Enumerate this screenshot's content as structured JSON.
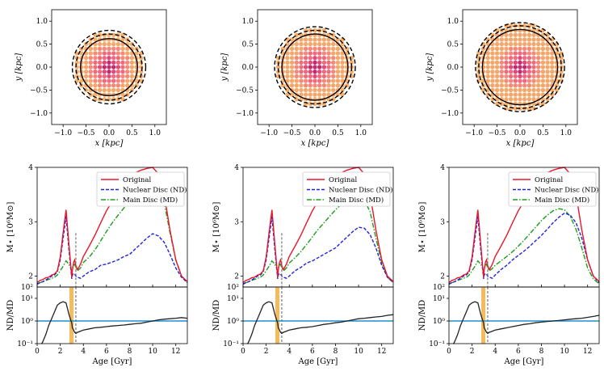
{
  "figure": {
    "panel_count": 3,
    "spatial": {
      "xlabel": "x [kpc]",
      "ylabel": "y [kpc]",
      "xlim": [
        -1.25,
        1.25
      ],
      "ylim": [
        -1.25,
        1.25
      ],
      "ticks": [
        -1.0,
        -0.5,
        0.0,
        0.5,
        1.0
      ],
      "tick_labels": [
        "−1.0",
        "−0.5",
        "0.0",
        "0.5",
        "1.0"
      ]
    },
    "sfh": {
      "ylabel": "M⋆ [10⁶M⊙]",
      "ylim": [
        1.8,
        4.0
      ],
      "yticks": [
        2,
        3,
        4
      ],
      "ytick_labels": [
        "10²",
        "2",
        "3",
        "4"
      ],
      "legend": [
        "Original",
        "Nuclear Disc (ND)",
        "Main Disc (MD)"
      ]
    },
    "ratio": {
      "ylabel": "ND/MD",
      "xlabel": "Age [Gyr]",
      "xlim": [
        0,
        13
      ],
      "xticks": [
        0,
        2,
        4,
        6,
        8,
        10,
        12
      ],
      "xtick_labels": [
        "0",
        "2",
        "4",
        "6",
        "8",
        "10",
        "12"
      ],
      "ytick_labels": [
        "10¹",
        "10⁰",
        "10⁻¹"
      ],
      "ylog_range": [
        -1,
        1.5
      ]
    }
  },
  "colors": {
    "original": "#e8172a",
    "nuclear": "#2222dd",
    "main": "#1b9e1b",
    "ratio_line": "#222222",
    "unity_line": "#1f8fcf",
    "age_band": "#f3b24a",
    "age_marker": "#777777"
  },
  "chart_data": [
    {
      "type": "scatter",
      "panel": "left",
      "title": "",
      "xlabel": "x [kpc]",
      "ylabel": "y [kpc]",
      "description_values": {
        "solid_circle_radius": 0.62,
        "dashed_inner_radius": 0.72,
        "dashed_outer_radius": 0.8,
        "particle_extent": 0.78
      },
      "ages_gyr": [
        0.0,
        0.25,
        0.5,
        0.75,
        1.0,
        1.25,
        1.5,
        1.75,
        2.0,
        2.25,
        2.5,
        2.75,
        3.0,
        3.05,
        3.15,
        3.25,
        3.35,
        3.5,
        3.75,
        4.0,
        4.5,
        5.0,
        5.5,
        6.0,
        6.5,
        7.0,
        7.5,
        8.0,
        8.5,
        9.0,
        9.5,
        10.0,
        10.5,
        11.0,
        11.5,
        12.0,
        12.5,
        13.0
      ],
      "original": [
        1.88,
        1.92,
        1.94,
        1.97,
        1.98,
        2.02,
        2.04,
        2.1,
        2.35,
        2.8,
        3.22,
        2.6,
        1.98,
        2.1,
        2.25,
        2.3,
        2.2,
        2.12,
        2.22,
        2.36,
        2.55,
        2.75,
        2.98,
        3.2,
        3.38,
        3.55,
        3.7,
        3.8,
        3.9,
        3.95,
        3.98,
        4.0,
        3.88,
        3.5,
        2.85,
        2.3,
        2.0,
        1.9
      ],
      "nuclear": [
        1.85,
        1.88,
        1.9,
        1.93,
        1.96,
        2.0,
        2.02,
        2.08,
        2.3,
        2.7,
        3.1,
        2.5,
        1.95,
        2.02,
        2.05,
        2.04,
        2.0,
        1.98,
        1.96,
        2.0,
        2.08,
        2.12,
        2.2,
        2.22,
        2.26,
        2.3,
        2.36,
        2.4,
        2.5,
        2.6,
        2.7,
        2.78,
        2.74,
        2.62,
        2.4,
        2.15,
        1.98,
        1.88
      ],
      "main": [
        1.86,
        1.88,
        1.9,
        1.92,
        1.94,
        1.96,
        1.98,
        2.02,
        2.1,
        2.18,
        2.28,
        2.22,
        2.1,
        2.15,
        2.2,
        2.22,
        2.15,
        2.1,
        2.15,
        2.25,
        2.35,
        2.48,
        2.65,
        2.82,
        2.98,
        3.12,
        3.25,
        3.38,
        3.5,
        3.6,
        3.68,
        3.7,
        3.62,
        3.35,
        2.8,
        2.3,
        2.0,
        1.88
      ],
      "ratio_log": [
        -1.2,
        -1.2,
        -0.9,
        -0.6,
        -0.2,
        0.1,
        0.4,
        0.7,
        0.8,
        0.85,
        0.8,
        0.3,
        -0.1,
        -0.3,
        -0.4,
        -0.5,
        -0.55,
        -0.5,
        -0.45,
        -0.4,
        -0.35,
        -0.3,
        -0.28,
        -0.25,
        -0.22,
        -0.2,
        -0.18,
        -0.15,
        -0.12,
        -0.1,
        -0.05,
        0.0,
        0.05,
        0.08,
        0.1,
        0.12,
        0.15,
        0.12
      ],
      "age_band": [
        2.8,
        3.15
      ],
      "age_marker": 3.35
    },
    {
      "type": "scatter",
      "panel": "middle",
      "title": "",
      "xlabel": "x [kpc]",
      "ylabel": "y [kpc]",
      "description_values": {
        "solid_circle_radius": 0.72,
        "dashed_inner_radius": 0.8,
        "dashed_outer_radius": 0.88,
        "particle_extent": 0.85
      },
      "ages_gyr": [
        0.0,
        0.25,
        0.5,
        0.75,
        1.0,
        1.25,
        1.5,
        1.75,
        2.0,
        2.25,
        2.5,
        2.75,
        3.0,
        3.05,
        3.15,
        3.25,
        3.35,
        3.5,
        3.75,
        4.0,
        4.5,
        5.0,
        5.5,
        6.0,
        6.5,
        7.0,
        7.5,
        8.0,
        8.5,
        9.0,
        9.5,
        10.0,
        10.5,
        11.0,
        11.5,
        12.0,
        12.5,
        13.0
      ],
      "original": [
        1.88,
        1.92,
        1.94,
        1.97,
        1.98,
        2.02,
        2.04,
        2.1,
        2.35,
        2.8,
        3.22,
        2.6,
        1.98,
        2.1,
        2.25,
        2.3,
        2.2,
        2.12,
        2.22,
        2.36,
        2.55,
        2.75,
        2.98,
        3.2,
        3.38,
        3.55,
        3.7,
        3.8,
        3.9,
        3.95,
        3.98,
        4.0,
        3.88,
        3.5,
        2.85,
        2.3,
        2.0,
        1.9
      ],
      "nuclear": [
        1.85,
        1.88,
        1.9,
        1.93,
        1.96,
        2.0,
        2.02,
        2.08,
        2.3,
        2.7,
        3.1,
        2.5,
        1.95,
        2.02,
        2.05,
        2.04,
        2.0,
        1.98,
        1.96,
        2.0,
        2.1,
        2.16,
        2.24,
        2.28,
        2.34,
        2.4,
        2.46,
        2.52,
        2.62,
        2.72,
        2.82,
        2.9,
        2.88,
        2.76,
        2.52,
        2.2,
        1.98,
        1.88
      ],
      "main": [
        1.86,
        1.88,
        1.9,
        1.92,
        1.94,
        1.96,
        1.98,
        2.02,
        2.1,
        2.18,
        2.28,
        2.22,
        2.1,
        2.15,
        2.2,
        2.22,
        2.15,
        2.1,
        2.15,
        2.24,
        2.34,
        2.45,
        2.58,
        2.72,
        2.86,
        2.98,
        3.1,
        3.22,
        3.32,
        3.4,
        3.46,
        3.48,
        3.4,
        3.18,
        2.7,
        2.25,
        1.98,
        1.88
      ],
      "ratio_log": [
        -1.2,
        -1.2,
        -0.9,
        -0.6,
        -0.2,
        0.1,
        0.4,
        0.7,
        0.8,
        0.85,
        0.8,
        0.3,
        -0.1,
        -0.3,
        -0.4,
        -0.5,
        -0.55,
        -0.5,
        -0.45,
        -0.4,
        -0.35,
        -0.3,
        -0.28,
        -0.25,
        -0.2,
        -0.15,
        -0.12,
        -0.08,
        -0.05,
        0.0,
        0.05,
        0.1,
        0.12,
        0.15,
        0.18,
        0.2,
        0.25,
        0.28
      ],
      "age_band": [
        2.8,
        3.15
      ],
      "age_marker": 3.35
    },
    {
      "type": "scatter",
      "panel": "right",
      "title": "",
      "xlabel": "x [kpc]",
      "ylabel": "y [kpc]",
      "description_values": {
        "solid_circle_radius": 0.82,
        "dashed_inner_radius": 0.9,
        "dashed_outer_radius": 0.97,
        "particle_extent": 0.95
      },
      "ages_gyr": [
        0.0,
        0.25,
        0.5,
        0.75,
        1.0,
        1.25,
        1.5,
        1.75,
        2.0,
        2.25,
        2.5,
        2.75,
        3.0,
        3.05,
        3.15,
        3.25,
        3.35,
        3.5,
        3.75,
        4.0,
        4.5,
        5.0,
        5.5,
        6.0,
        6.5,
        7.0,
        7.5,
        8.0,
        8.5,
        9.0,
        9.5,
        10.0,
        10.5,
        11.0,
        11.5,
        12.0,
        12.5,
        13.0
      ],
      "original": [
        1.88,
        1.92,
        1.94,
        1.97,
        1.98,
        2.02,
        2.04,
        2.1,
        2.35,
        2.8,
        3.22,
        2.6,
        1.98,
        2.1,
        2.25,
        2.3,
        2.2,
        2.12,
        2.22,
        2.36,
        2.55,
        2.75,
        2.98,
        3.2,
        3.38,
        3.55,
        3.7,
        3.8,
        3.9,
        3.95,
        3.98,
        4.0,
        3.88,
        3.5,
        2.85,
        2.3,
        2.0,
        1.9
      ],
      "nuclear": [
        1.85,
        1.88,
        1.9,
        1.93,
        1.96,
        2.0,
        2.02,
        2.08,
        2.3,
        2.7,
        3.1,
        2.5,
        1.95,
        2.02,
        2.05,
        2.04,
        2.0,
        1.98,
        1.96,
        2.02,
        2.12,
        2.2,
        2.3,
        2.38,
        2.46,
        2.55,
        2.65,
        2.75,
        2.86,
        2.98,
        3.08,
        3.16,
        3.12,
        2.98,
        2.7,
        2.3,
        2.0,
        1.88
      ],
      "main": [
        1.86,
        1.88,
        1.9,
        1.92,
        1.94,
        1.96,
        1.98,
        2.02,
        2.1,
        2.18,
        2.28,
        2.22,
        2.1,
        2.15,
        2.2,
        2.22,
        2.15,
        2.1,
        2.14,
        2.2,
        2.28,
        2.36,
        2.45,
        2.55,
        2.66,
        2.78,
        2.9,
        3.02,
        3.12,
        3.2,
        3.24,
        3.22,
        3.1,
        2.86,
        2.52,
        2.15,
        1.95,
        1.86
      ],
      "ratio_log": [
        -1.2,
        -1.2,
        -0.9,
        -0.6,
        -0.2,
        0.1,
        0.4,
        0.7,
        0.8,
        0.85,
        0.8,
        0.3,
        -0.1,
        -0.3,
        -0.4,
        -0.5,
        -0.55,
        -0.5,
        -0.45,
        -0.4,
        -0.35,
        -0.3,
        -0.25,
        -0.2,
        -0.15,
        -0.12,
        -0.08,
        -0.05,
        -0.02,
        0.0,
        0.02,
        0.05,
        0.08,
        0.1,
        0.12,
        0.16,
        0.2,
        0.25
      ],
      "age_band": [
        2.8,
        3.15
      ],
      "age_marker": 3.35
    }
  ]
}
